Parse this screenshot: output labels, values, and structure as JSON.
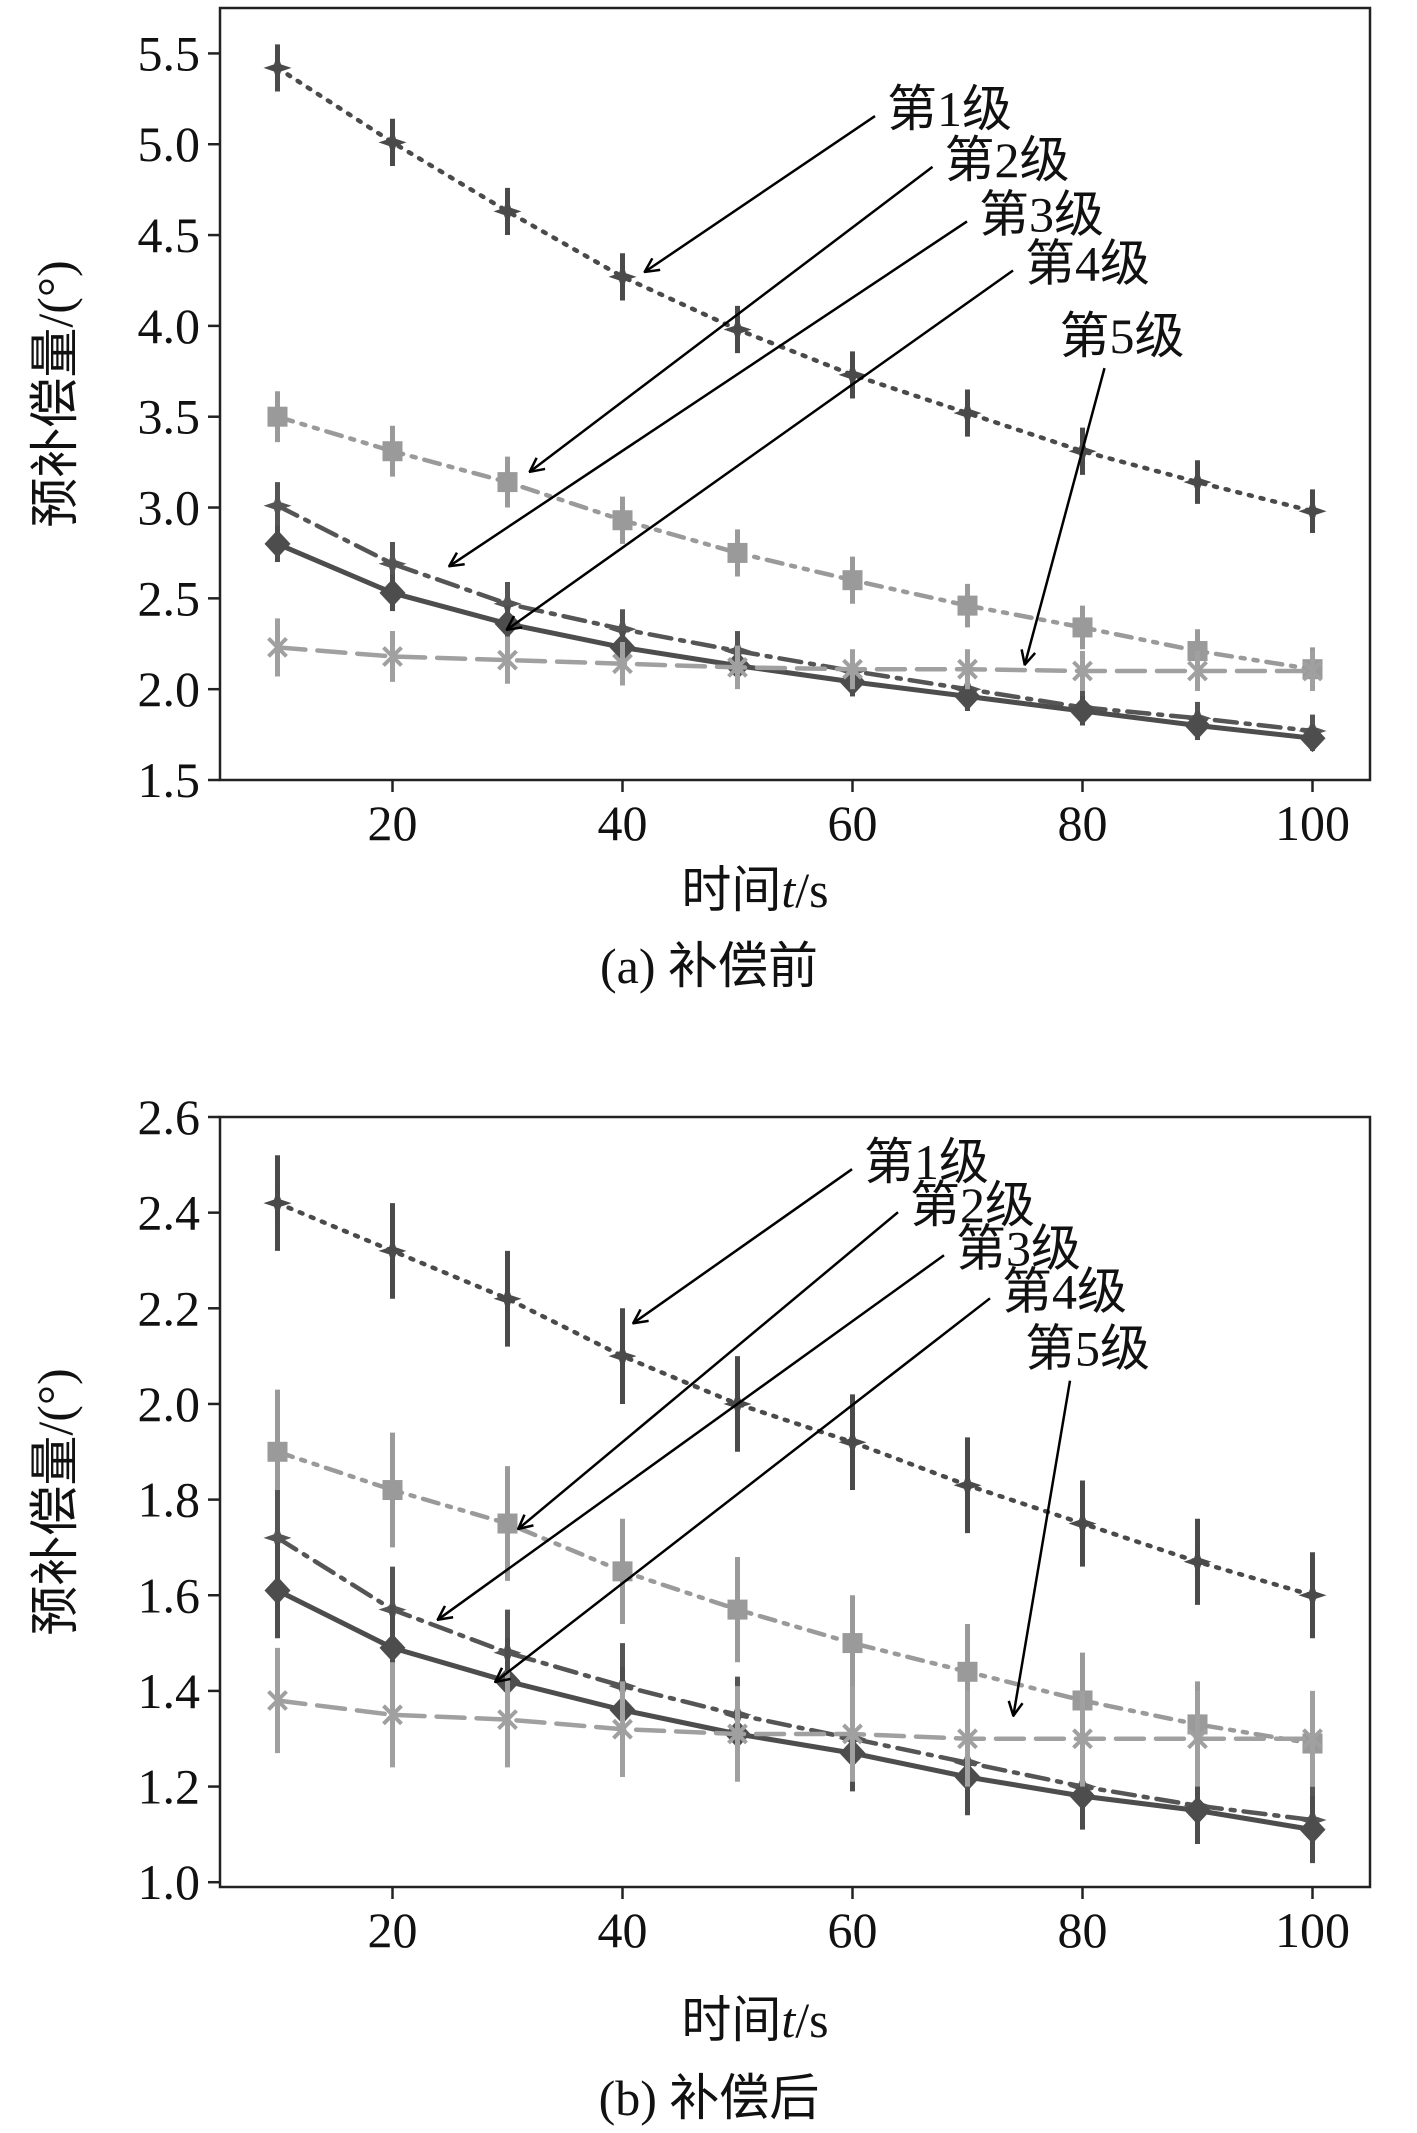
{
  "chart_data": [
    {
      "type": "line",
      "caption": "(a) 补偿前",
      "xlabel_main": "时间",
      "xlabel_var": "t",
      "xlabel_unit": "/s",
      "ylabel": "预补偿量/(°)",
      "xlim": [
        5,
        105
      ],
      "ylim": [
        1.5,
        5.75
      ],
      "xticks": [
        20,
        40,
        60,
        80,
        100
      ],
      "yticks": [
        1.5,
        2.0,
        2.5,
        3.0,
        3.5,
        4.0,
        4.5,
        5.0,
        5.5
      ],
      "x": [
        10,
        20,
        30,
        40,
        50,
        60,
        70,
        80,
        90,
        100
      ],
      "series": [
        {
          "name": "第1级",
          "marker": "star",
          "style": "dotted",
          "color": "#4a4a4a",
          "values": [
            5.42,
            5.01,
            4.63,
            4.27,
            3.98,
            3.73,
            3.52,
            3.31,
            3.14,
            2.98
          ],
          "err": [
            0.13,
            0.13,
            0.13,
            0.13,
            0.13,
            0.13,
            0.13,
            0.13,
            0.12,
            0.12
          ],
          "annotation": {
            "text": "第1级",
            "text_at": [
              63,
              5.1
            ],
            "arrow_to": [
              42,
              4.3
            ]
          }
        },
        {
          "name": "第2级",
          "marker": "square",
          "style": "dashdotdot",
          "color": "#9a9a9a",
          "values": [
            3.5,
            3.31,
            3.14,
            2.93,
            2.75,
            2.6,
            2.46,
            2.34,
            2.21,
            2.11
          ],
          "err": [
            0.14,
            0.14,
            0.14,
            0.13,
            0.13,
            0.13,
            0.12,
            0.12,
            0.12,
            0.12
          ],
          "annotation": {
            "text": "第2级",
            "text_at": [
              68,
              4.82
            ],
            "arrow_to": [
              32,
              3.2
            ]
          }
        },
        {
          "name": "第3级",
          "marker": "star",
          "style": "dashdot",
          "color": "#555555",
          "values": [
            3.01,
            2.69,
            2.47,
            2.33,
            2.21,
            2.1,
            2.0,
            1.9,
            1.84,
            1.77
          ],
          "err": [
            0.13,
            0.12,
            0.12,
            0.11,
            0.11,
            0.1,
            0.1,
            0.09,
            0.09,
            0.09
          ],
          "annotation": {
            "text": "第3级",
            "text_at": [
              71,
              4.52
            ],
            "arrow_to": [
              25,
              2.68
            ]
          }
        },
        {
          "name": "第4级",
          "marker": "diamond",
          "style": "solid",
          "color": "#4d4d4d",
          "values": [
            2.8,
            2.53,
            2.36,
            2.23,
            2.13,
            2.04,
            1.96,
            1.88,
            1.8,
            1.73
          ],
          "err": [
            0.1,
            0.1,
            0.1,
            0.09,
            0.09,
            0.08,
            0.08,
            0.08,
            0.08,
            0.07
          ],
          "annotation": {
            "text": "第4级",
            "text_at": [
              75,
              4.25
            ],
            "arrow_to": [
              30,
              2.33
            ]
          }
        },
        {
          "name": "第5级",
          "marker": "x",
          "style": "dashed",
          "color": "#a0a0a0",
          "values": [
            2.23,
            2.18,
            2.16,
            2.14,
            2.12,
            2.11,
            2.11,
            2.1,
            2.1,
            2.1
          ],
          "err": [
            0.16,
            0.14,
            0.13,
            0.12,
            0.12,
            0.11,
            0.11,
            0.11,
            0.11,
            0.11
          ],
          "annotation": {
            "text": "第5级",
            "text_at": [
              78,
              3.85
            ],
            "arrow_to": [
              75,
              2.14
            ]
          }
        }
      ]
    },
    {
      "type": "line",
      "caption": "(b) 补偿后",
      "xlabel_main": "时间",
      "xlabel_var": "t",
      "xlabel_unit": "/s",
      "ylabel": "预补偿量/(°)",
      "xlim": [
        5,
        105
      ],
      "ylim": [
        0.99,
        2.6
      ],
      "xticks": [
        20,
        40,
        60,
        80,
        100
      ],
      "yticks": [
        1.0,
        1.2,
        1.4,
        1.6,
        1.8,
        2.0,
        2.2,
        2.4,
        2.6
      ],
      "x": [
        10,
        20,
        30,
        40,
        50,
        60,
        70,
        80,
        90,
        100
      ],
      "series": [
        {
          "name": "第1级",
          "marker": "star",
          "style": "dotted",
          "color": "#4a4a4a",
          "values": [
            2.42,
            2.32,
            2.22,
            2.1,
            2.0,
            1.92,
            1.83,
            1.75,
            1.67,
            1.6
          ],
          "err": [
            0.1,
            0.1,
            0.1,
            0.1,
            0.1,
            0.1,
            0.1,
            0.09,
            0.09,
            0.09
          ],
          "annotation": {
            "text": "第1级",
            "text_at": [
              61,
              2.47
            ],
            "arrow_to": [
              41,
              2.17
            ]
          }
        },
        {
          "name": "第2级",
          "marker": "square",
          "style": "dashdotdot",
          "color": "#9a9a9a",
          "values": [
            1.9,
            1.82,
            1.75,
            1.65,
            1.57,
            1.5,
            1.44,
            1.38,
            1.33,
            1.29
          ],
          "err": [
            0.13,
            0.12,
            0.12,
            0.11,
            0.11,
            0.1,
            0.1,
            0.1,
            0.09,
            0.09
          ],
          "annotation": {
            "text": "第2级",
            "text_at": [
              65,
              2.38
            ],
            "arrow_to": [
              31,
              1.74
            ]
          }
        },
        {
          "name": "第3级",
          "marker": "star",
          "style": "dashdot",
          "color": "#555555",
          "values": [
            1.72,
            1.57,
            1.48,
            1.41,
            1.35,
            1.3,
            1.25,
            1.2,
            1.16,
            1.13
          ],
          "err": [
            0.1,
            0.09,
            0.09,
            0.09,
            0.08,
            0.08,
            0.08,
            0.07,
            0.07,
            0.07
          ],
          "annotation": {
            "text": "第3级",
            "text_at": [
              69,
              2.29
            ],
            "arrow_to": [
              24,
              1.55
            ]
          }
        },
        {
          "name": "第4级",
          "marker": "diamond",
          "style": "solid",
          "color": "#4d4d4d",
          "values": [
            1.61,
            1.49,
            1.42,
            1.36,
            1.31,
            1.27,
            1.22,
            1.18,
            1.15,
            1.11
          ],
          "err": [
            0.1,
            0.09,
            0.09,
            0.09,
            0.08,
            0.08,
            0.08,
            0.07,
            0.07,
            0.07
          ],
          "annotation": {
            "text": "第4级",
            "text_at": [
              73,
              2.2
            ],
            "arrow_to": [
              29,
              1.42
            ]
          }
        },
        {
          "name": "第5级",
          "marker": "x",
          "style": "dashed",
          "color": "#a0a0a0",
          "values": [
            1.38,
            1.35,
            1.34,
            1.32,
            1.31,
            1.31,
            1.3,
            1.3,
            1.3,
            1.3
          ],
          "err": [
            0.11,
            0.11,
            0.1,
            0.1,
            0.1,
            0.1,
            0.1,
            0.1,
            0.1,
            0.1
          ],
          "annotation": {
            "text": "第5级",
            "text_at": [
              75,
              2.08
            ],
            "arrow_to": [
              74,
              1.35
            ]
          }
        }
      ]
    }
  ]
}
